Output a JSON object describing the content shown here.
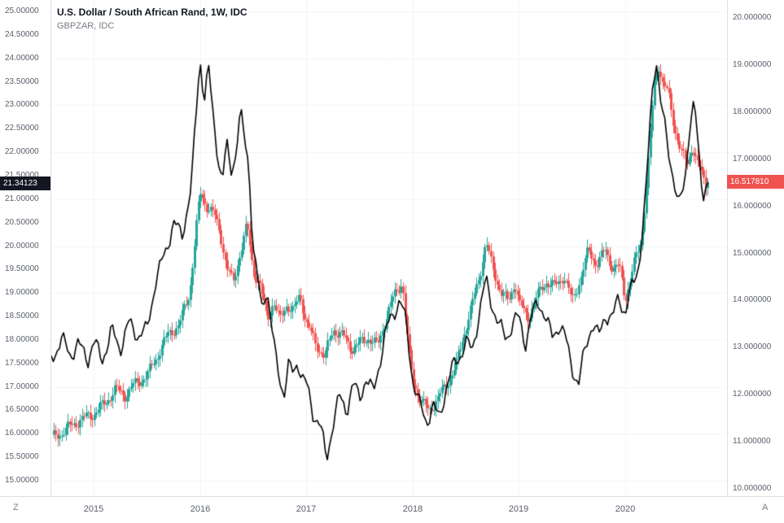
{
  "header": {
    "title": "U.S. Dollar / South African Rand, 1W, IDC",
    "subtitle": "GBPZAR, IDC"
  },
  "left_axis": {
    "min": 15.0,
    "max": 25.0,
    "step": 0.5,
    "labels": [
      "25.00000",
      "24.50000",
      "24.00000",
      "23.50000",
      "23.00000",
      "22.50000",
      "22.00000",
      "21.50000",
      "21.00000",
      "20.50000",
      "20.00000",
      "19.50000",
      "19.00000",
      "18.50000",
      "18.00000",
      "17.50000",
      "17.00000",
      "16.50000",
      "16.00000",
      "15.50000",
      "15.00000"
    ],
    "tag": {
      "value": "21.34123",
      "bg": "#131722"
    }
  },
  "right_axis": {
    "min": 10.0,
    "max": 20.0,
    "step": 1.0,
    "labels": [
      "20.000000",
      "19.000000",
      "18.000000",
      "17.000000",
      "16.000000",
      "15.000000",
      "14.000000",
      "13.000000",
      "12.000000",
      "11.000000",
      "10.000000"
    ],
    "tag": {
      "value": "16.517810",
      "bg": "#ef5350"
    }
  },
  "time_axis": {
    "labels": [
      "2015",
      "2016",
      "2017",
      "2018",
      "2019",
      "2020"
    ]
  },
  "corner_buttons": {
    "left": "Z",
    "right": "A"
  },
  "colors": {
    "up": "#26a69a",
    "down": "#ef5350",
    "compare_line": "#000000",
    "grid": "#f1f3f6",
    "axis_text": "#5a5f6b",
    "left_tag_bg": "#131722",
    "right_tag_bg": "#ef5350"
  },
  "chart_data": {
    "type": "mixed",
    "title": "U.S. Dollar / South African Rand, 1W, IDC",
    "x_axis": {
      "start": 2014.602,
      "end": 2020.949,
      "ticks": [
        2015,
        2016,
        2017,
        2018,
        2019,
        2020
      ]
    },
    "left_axis_range": [
      15.0,
      25.0
    ],
    "right_axis_range": [
      10.0,
      20.0
    ],
    "grid": true,
    "legend_position": "top-left",
    "series": [
      {
        "name": "USDZAR",
        "type": "candlestick",
        "axis": "right",
        "interval": "1W",
        "last": 16.51781,
        "anchors": [
          [
            2014.6,
            11.1
          ],
          [
            2014.75,
            11.3
          ],
          [
            2014.9,
            11.45
          ],
          [
            2015.0,
            11.6
          ],
          [
            2015.1,
            11.85
          ],
          [
            2015.2,
            12.1
          ],
          [
            2015.3,
            11.95
          ],
          [
            2015.4,
            12.25
          ],
          [
            2015.5,
            12.45
          ],
          [
            2015.6,
            12.85
          ],
          [
            2015.7,
            13.25
          ],
          [
            2015.8,
            13.45
          ],
          [
            2015.9,
            14.2
          ],
          [
            2016.0,
            16.3
          ],
          [
            2016.06,
            16.0
          ],
          [
            2016.13,
            15.8
          ],
          [
            2016.19,
            15.4
          ],
          [
            2016.25,
            14.7
          ],
          [
            2016.31,
            14.4
          ],
          [
            2016.38,
            15.1
          ],
          [
            2016.44,
            15.6
          ],
          [
            2016.5,
            14.6
          ],
          [
            2016.56,
            14.3
          ],
          [
            2016.63,
            13.6
          ],
          [
            2016.69,
            14.0
          ],
          [
            2016.75,
            13.6
          ],
          [
            2016.81,
            13.95
          ],
          [
            2016.88,
            13.75
          ],
          [
            2016.94,
            14.1
          ],
          [
            2017.0,
            13.5
          ],
          [
            2017.08,
            13.1
          ],
          [
            2017.17,
            12.85
          ],
          [
            2017.25,
            13.4
          ],
          [
            2017.33,
            13.25
          ],
          [
            2017.42,
            12.95
          ],
          [
            2017.5,
            13.1
          ],
          [
            2017.58,
            13.25
          ],
          [
            2017.67,
            13.05
          ],
          [
            2017.75,
            13.6
          ],
          [
            2017.83,
            14.1
          ],
          [
            2017.9,
            14.4
          ],
          [
            2017.96,
            12.95
          ],
          [
            2018.0,
            12.35
          ],
          [
            2018.08,
            11.85
          ],
          [
            2018.15,
            11.65
          ],
          [
            2018.23,
            11.85
          ],
          [
            2018.31,
            12.2
          ],
          [
            2018.4,
            12.6
          ],
          [
            2018.48,
            13.3
          ],
          [
            2018.56,
            13.9
          ],
          [
            2018.63,
            14.5
          ],
          [
            2018.69,
            15.2
          ],
          [
            2018.75,
            14.7
          ],
          [
            2018.83,
            14.2
          ],
          [
            2018.9,
            14.0
          ],
          [
            2018.96,
            14.4
          ],
          [
            2019.0,
            13.9
          ],
          [
            2019.08,
            13.6
          ],
          [
            2019.17,
            14.1
          ],
          [
            2019.25,
            14.45
          ],
          [
            2019.33,
            14.3
          ],
          [
            2019.42,
            14.5
          ],
          [
            2019.5,
            13.95
          ],
          [
            2019.58,
            14.5
          ],
          [
            2019.65,
            15.1
          ],
          [
            2019.73,
            14.8
          ],
          [
            2019.81,
            15.05
          ],
          [
            2019.88,
            14.65
          ],
          [
            2019.94,
            14.7
          ],
          [
            2020.0,
            14.05
          ],
          [
            2020.08,
            14.8
          ],
          [
            2020.15,
            15.3
          ],
          [
            2020.21,
            16.7
          ],
          [
            2020.27,
            18.5
          ],
          [
            2020.31,
            19.0
          ],
          [
            2020.35,
            18.6
          ],
          [
            2020.4,
            18.4
          ],
          [
            2020.46,
            17.7
          ],
          [
            2020.52,
            17.2
          ],
          [
            2020.58,
            16.9
          ],
          [
            2020.63,
            17.3
          ],
          [
            2020.67,
            16.9
          ],
          [
            2020.71,
            16.7
          ],
          [
            2020.75,
            16.45
          ],
          [
            2020.79,
            16.52
          ]
        ]
      },
      {
        "name": "GBPZAR",
        "type": "line",
        "axis": "left",
        "last": 21.34123,
        "anchors": [
          [
            2014.6,
            17.55
          ],
          [
            2014.7,
            18.05
          ],
          [
            2014.78,
            17.75
          ],
          [
            2014.85,
            17.9
          ],
          [
            2014.95,
            17.55
          ],
          [
            2015.0,
            17.9
          ],
          [
            2015.08,
            17.6
          ],
          [
            2015.17,
            18.25
          ],
          [
            2015.25,
            17.85
          ],
          [
            2015.33,
            18.3
          ],
          [
            2015.42,
            18.05
          ],
          [
            2015.5,
            18.2
          ],
          [
            2015.58,
            19.3
          ],
          [
            2015.67,
            19.85
          ],
          [
            2015.75,
            20.45
          ],
          [
            2015.83,
            20.15
          ],
          [
            2015.92,
            21.3
          ],
          [
            2016.0,
            24.1
          ],
          [
            2016.04,
            23.2
          ],
          [
            2016.08,
            23.8
          ],
          [
            2016.13,
            22.6
          ],
          [
            2016.17,
            21.9
          ],
          [
            2016.21,
            21.3
          ],
          [
            2016.25,
            22.1
          ],
          [
            2016.29,
            21.6
          ],
          [
            2016.33,
            21.9
          ],
          [
            2016.38,
            22.9
          ],
          [
            2016.42,
            22.3
          ],
          [
            2016.46,
            21.8
          ],
          [
            2016.5,
            20.0
          ],
          [
            2016.54,
            19.3
          ],
          [
            2016.58,
            18.6
          ],
          [
            2016.63,
            19.1
          ],
          [
            2016.67,
            18.3
          ],
          [
            2016.71,
            17.6
          ],
          [
            2016.75,
            17.2
          ],
          [
            2016.79,
            16.9
          ],
          [
            2016.83,
            17.5
          ],
          [
            2016.88,
            17.3
          ],
          [
            2016.92,
            17.6
          ],
          [
            2016.96,
            17.2
          ],
          [
            2017.0,
            17.0
          ],
          [
            2017.06,
            16.4
          ],
          [
            2017.13,
            16.2
          ],
          [
            2017.19,
            15.45
          ],
          [
            2017.25,
            16.3
          ],
          [
            2017.31,
            16.8
          ],
          [
            2017.38,
            16.5
          ],
          [
            2017.44,
            17.0
          ],
          [
            2017.5,
            16.7
          ],
          [
            2017.56,
            17.2
          ],
          [
            2017.63,
            16.9
          ],
          [
            2017.69,
            17.6
          ],
          [
            2017.75,
            18.2
          ],
          [
            2017.81,
            18.5
          ],
          [
            2017.88,
            18.8
          ],
          [
            2017.94,
            18.3
          ],
          [
            2018.0,
            17.2
          ],
          [
            2018.06,
            16.7
          ],
          [
            2018.13,
            16.3
          ],
          [
            2018.19,
            16.6
          ],
          [
            2018.25,
            16.25
          ],
          [
            2018.31,
            16.9
          ],
          [
            2018.38,
            17.4
          ],
          [
            2018.44,
            17.7
          ],
          [
            2018.5,
            18.0
          ],
          [
            2018.56,
            17.8
          ],
          [
            2018.63,
            18.6
          ],
          [
            2018.69,
            19.2
          ],
          [
            2018.75,
            18.7
          ],
          [
            2018.81,
            18.3
          ],
          [
            2018.88,
            18.1
          ],
          [
            2018.94,
            18.4
          ],
          [
            2019.0,
            18.5
          ],
          [
            2019.06,
            17.9
          ],
          [
            2019.13,
            18.5
          ],
          [
            2019.19,
            18.8
          ],
          [
            2019.25,
            18.5
          ],
          [
            2019.31,
            18.1
          ],
          [
            2019.38,
            18.4
          ],
          [
            2019.44,
            18.0
          ],
          [
            2019.5,
            17.4
          ],
          [
            2019.56,
            16.95
          ],
          [
            2019.63,
            17.9
          ],
          [
            2019.69,
            18.4
          ],
          [
            2019.75,
            18.1
          ],
          [
            2019.81,
            18.6
          ],
          [
            2019.88,
            18.4
          ],
          [
            2019.94,
            18.9
          ],
          [
            2020.0,
            18.5
          ],
          [
            2020.06,
            19.1
          ],
          [
            2020.13,
            19.7
          ],
          [
            2020.19,
            21.0
          ],
          [
            2020.25,
            23.3
          ],
          [
            2020.29,
            24.05
          ],
          [
            2020.33,
            23.0
          ],
          [
            2020.38,
            22.4
          ],
          [
            2020.44,
            21.6
          ],
          [
            2020.5,
            20.8
          ],
          [
            2020.56,
            21.5
          ],
          [
            2020.6,
            22.5
          ],
          [
            2020.65,
            23.05
          ],
          [
            2020.69,
            22.0
          ],
          [
            2020.73,
            21.1
          ],
          [
            2020.79,
            21.34
          ]
        ]
      }
    ]
  }
}
